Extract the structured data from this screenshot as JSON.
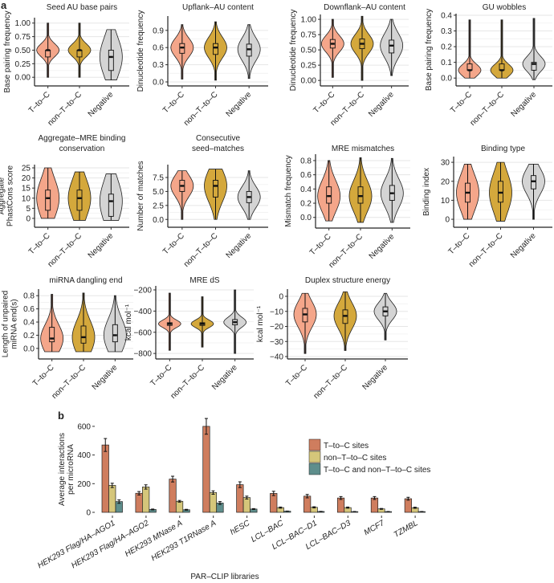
{
  "panel_labels": {
    "a": "a",
    "b": "b"
  },
  "group_colors": {
    "T-to-C": "#f4a68a",
    "non-T-to-C": "#d4a83c",
    "Negative": "#d4d4d4"
  },
  "chart_data": [
    {
      "type": "violin",
      "title": [
        "Seed AU base pairs"
      ],
      "ylabel": [
        "Base pairing frequency"
      ],
      "categories": [
        "T–to–C",
        "non–T–to–C",
        "Negative"
      ],
      "ylim": [
        -0.16,
        1.1
      ],
      "yticks": [
        0,
        0.25,
        0.5,
        0.75,
        1
      ],
      "tick_labels": [
        "0.00",
        "0.25",
        "0.50",
        "0.75",
        "1.00"
      ],
      "stats": [
        {
          "median": 0.5,
          "q1": 0.375,
          "q3": 0.5,
          "min": 0,
          "max": 1
        },
        {
          "median": 0.5,
          "q1": 0.375,
          "q3": 0.5,
          "min": 0,
          "max": 1
        },
        {
          "median": 0.375,
          "q1": 0.125,
          "q3": 0.5,
          "min": -0.05,
          "max": 0.88
        }
      ]
    },
    {
      "type": "violin",
      "title": [
        "Upflank–AU content"
      ],
      "ylabel": [
        "Dinucleotide frequency"
      ],
      "categories": [
        "T–to–C",
        "non–T–to–C",
        "Negative"
      ],
      "ylim": [
        -0.07,
        1.15
      ],
      "yticks": [
        0,
        0.3,
        0.6,
        0.9
      ],
      "tick_labels": [
        "0.0",
        "0.3",
        "0.6",
        "0.9"
      ],
      "stats": [
        {
          "median": 0.6,
          "q1": 0.5,
          "q3": 0.67,
          "min": 0.05,
          "max": 1.0
        },
        {
          "median": 0.6,
          "q1": 0.48,
          "q3": 0.67,
          "min": 0.03,
          "max": 1.05
        },
        {
          "median": 0.57,
          "q1": 0.45,
          "q3": 0.66,
          "min": 0.06,
          "max": 1.0
        }
      ]
    },
    {
      "type": "violin",
      "title": [
        "Downflank–AU content"
      ],
      "ylabel": [
        "Dinucleotide frequency"
      ],
      "categories": [
        "T–to–C",
        "non–T–to–C",
        "Negative"
      ],
      "ylim": [
        -0.09,
        1.08
      ],
      "yticks": [
        0,
        0.25,
        0.5,
        0.75,
        1
      ],
      "tick_labels": [
        "0.00",
        "0.25",
        "0.50",
        "0.75",
        "1.00"
      ],
      "stats": [
        {
          "median": 0.6,
          "q1": 0.53,
          "q3": 0.67,
          "min": 0.05,
          "max": 1.0
        },
        {
          "median": 0.6,
          "q1": 0.52,
          "q3": 0.68,
          "min": 0.0,
          "max": 1.05
        },
        {
          "median": 0.57,
          "q1": 0.45,
          "q3": 0.66,
          "min": 0.08,
          "max": 1.0
        }
      ]
    },
    {
      "type": "violin",
      "title": [
        "GU wobbles"
      ],
      "ylabel": [
        "Base pairing frequency"
      ],
      "categories": [
        "T–to–C",
        "non–T–to–C",
        "Negative"
      ],
      "ylim": [
        -0.05,
        0.41
      ],
      "yticks": [
        0,
        0.1,
        0.2,
        0.3,
        0.4
      ],
      "tick_labels": [
        "0.0",
        "0.1",
        "0.2",
        "0.3",
        "0.4"
      ],
      "stats": [
        {
          "median": 0.05,
          "q1": 0.05,
          "q3": 0.09,
          "min": 0,
          "max": 0.37
        },
        {
          "median": 0.05,
          "q1": 0.05,
          "q3": 0.09,
          "min": 0,
          "max": 0.37
        },
        {
          "median": 0.09,
          "q1": 0.05,
          "q3": 0.1,
          "min": -0.01,
          "max": 0.38
        }
      ]
    },
    {
      "type": "violin",
      "title": [
        "Aggregate–MRE binding",
        "conservation"
      ],
      "ylabel": [
        "Aggregate",
        "PhastCons score"
      ],
      "categories": [
        "T–to–C",
        "non–T–to–C",
        "Negative"
      ],
      "ylim": [
        -4.4,
        26.6
      ],
      "yticks": [
        0,
        5,
        10,
        15,
        20,
        25
      ],
      "tick_labels": [
        "0",
        "5",
        "10",
        "15",
        "20",
        "25"
      ],
      "stats": [
        {
          "median": 10,
          "q1": 4,
          "q3": 14,
          "min": 0,
          "max": 25
        },
        {
          "median": 10,
          "q1": 4,
          "q3": 14,
          "min": -1,
          "max": 23
        },
        {
          "median": 8.5,
          "q1": 1,
          "q3": 12,
          "min": -1,
          "max": 22
        }
      ]
    },
    {
      "type": "violin",
      "title": [
        "Consecutive",
        "seed–matches"
      ],
      "ylabel": [
        "Number of matches"
      ],
      "categories": [
        "T–to–C",
        "non–T–to–C",
        "Negative"
      ],
      "ylim": [
        -1.4,
        9.8
      ],
      "yticks": [
        0,
        2.5,
        5,
        7.5
      ],
      "tick_labels": [
        "0.0",
        "2.5",
        "5.0",
        "7.5"
      ],
      "stats": [
        {
          "median": 6,
          "q1": 5,
          "q3": 7,
          "min": 0,
          "max": 8.7
        },
        {
          "median": 6,
          "q1": 4,
          "q3": 7,
          "min": 0,
          "max": 9
        },
        {
          "median": 4,
          "q1": 3,
          "q3": 5,
          "min": 0,
          "max": 8.7
        }
      ]
    },
    {
      "type": "violin",
      "title": [
        "MRE mismatches"
      ],
      "ylabel": [
        "Mismatch frequency"
      ],
      "categories": [
        "T–to–C",
        "non–T–to–C",
        "Negative"
      ],
      "ylim": [
        -0.15,
        0.89
      ],
      "yticks": [
        0,
        0.2,
        0.4,
        0.6,
        0.8
      ],
      "tick_labels": [
        "0.0",
        "0.2",
        "0.4",
        "0.6",
        "0.8"
      ],
      "stats": [
        {
          "median": 0.3,
          "q1": 0.2,
          "q3": 0.43,
          "min": -0.05,
          "max": 0.8
        },
        {
          "median": 0.3,
          "q1": 0.2,
          "q3": 0.43,
          "min": -0.07,
          "max": 0.84
        },
        {
          "median": 0.34,
          "q1": 0.24,
          "q3": 0.45,
          "min": -0.07,
          "max": 0.83
        }
      ]
    },
    {
      "type": "violin",
      "title": [
        "Binding type"
      ],
      "ylabel": [
        "Binding index"
      ],
      "categories": [
        "T–to–C",
        "non–T–to–C",
        "Negative"
      ],
      "ylim": [
        -4.2,
        33
      ],
      "yticks": [
        0,
        10,
        20,
        30
      ],
      "tick_labels": [
        "0",
        "10",
        "20",
        "30"
      ],
      "stats": [
        {
          "median": 14,
          "q1": 9,
          "q3": 19,
          "min": 0,
          "max": 29
        },
        {
          "median": 14,
          "q1": 9,
          "q3": 20,
          "min": -1,
          "max": 30
        },
        {
          "median": 20,
          "q1": 16,
          "q3": 23,
          "min": 0,
          "max": 29
        }
      ]
    },
    {
      "type": "violin",
      "title": [
        "miRNA dangling end"
      ],
      "ylabel": [
        "Length of unpaired",
        "miRNA end(s)"
      ],
      "categories": [
        "T–to–C",
        "non–T–to–C",
        "Negative"
      ],
      "ylim": [
        -0.16,
        0.9
      ],
      "yticks": [
        0,
        0.2,
        0.4,
        0.6,
        0.8
      ],
      "tick_labels": [
        "0.0",
        "0.2",
        "0.4",
        "0.6",
        "0.8"
      ],
      "stats": [
        {
          "median": 0.15,
          "q1": 0.1,
          "q3": 0.32,
          "min": -0.05,
          "max": 0.82
        },
        {
          "median": 0.17,
          "q1": 0.08,
          "q3": 0.34,
          "min": -0.05,
          "max": 0.84
        },
        {
          "median": 0.2,
          "q1": 0.1,
          "q3": 0.36,
          "min": -0.05,
          "max": 0.8
        }
      ]
    },
    {
      "type": "violin",
      "title": [
        "MRE dS"
      ],
      "ylabel": [
        "kcal mol⁻¹"
      ],
      "categories": [
        "T–to–C",
        "non–T–to–C",
        "Negative"
      ],
      "ylim": [
        -852,
        -162
      ],
      "yticks": [
        -800,
        -600,
        -400,
        -200
      ],
      "tick_labels": [
        "−800",
        "−600",
        "−400",
        "−200"
      ],
      "stats": [
        {
          "median": -520,
          "q1": -535,
          "q3": -510,
          "min": -770,
          "max": -230
        },
        {
          "median": -520,
          "q1": -535,
          "q3": -510,
          "min": -740,
          "max": -265
        },
        {
          "median": -505,
          "q1": -530,
          "q3": -480,
          "min": -800,
          "max": -200
        }
      ]
    },
    {
      "type": "violin",
      "title": [
        "Duplex structure energy"
      ],
      "ylabel": [
        "kcal mol⁻¹"
      ],
      "categories": [
        "T–to–C",
        "non–T–to–C",
        "Negative"
      ],
      "ylim": [
        -41.6,
        4.8
      ],
      "yticks": [
        -40,
        -30,
        -20,
        -10,
        0
      ],
      "tick_labels": [
        "−40",
        "−30",
        "−20",
        "−10",
        "0"
      ],
      "stats": [
        {
          "median": -12,
          "q1": -17,
          "q3": -8,
          "min": -38,
          "max": 2
        },
        {
          "median": -13,
          "q1": -18,
          "q3": -9,
          "min": -36,
          "max": 3
        },
        {
          "median": -10,
          "q1": -13,
          "q3": -7,
          "min": -29,
          "max": 2
        }
      ]
    },
    {
      "type": "bar",
      "xlabel": "PAR–CLIP libraries",
      "ylabel": [
        "Average interactions",
        "per microRNA"
      ],
      "ylim": [
        0,
        650
      ],
      "yticks": [
        0,
        200,
        400,
        600
      ],
      "categories": [
        "HEK293 Flag/HA–AGO1",
        "HEK293 Flag/HA–AGO2",
        "HEK293 MNase A",
        "HEK293 T1RNase A",
        "hESC",
        "LCL–BAC",
        "LCL–BAC–D1",
        "LCL–BAC–D3",
        "MCF7",
        "TZMBL"
      ],
      "legend_position": "top-right",
      "series": [
        {
          "name": "T–to–C sites",
          "color": "#cf7d5e",
          "values": [
            470,
            133,
            232,
            600,
            193,
            132,
            113,
            100,
            100,
            95
          ],
          "errors": [
            45,
            12,
            20,
            55,
            20,
            15,
            12,
            10,
            10,
            10
          ]
        },
        {
          "name": "non–T–to–C sites",
          "color": "#d5c67a",
          "values": [
            188,
            177,
            77,
            138,
            103,
            33,
            35,
            33,
            24,
            32
          ],
          "errors": [
            15,
            15,
            6,
            12,
            10,
            4,
            4,
            4,
            3,
            4
          ]
        },
        {
          "name": "T–to–C and non–T–to–C sites",
          "color": "#5e8e8c",
          "values": [
            75,
            20,
            18,
            65,
            23,
            8,
            6,
            5,
            5,
            5
          ],
          "errors": [
            12,
            3,
            3,
            10,
            3,
            1,
            1,
            1,
            1,
            1
          ]
        }
      ]
    }
  ]
}
